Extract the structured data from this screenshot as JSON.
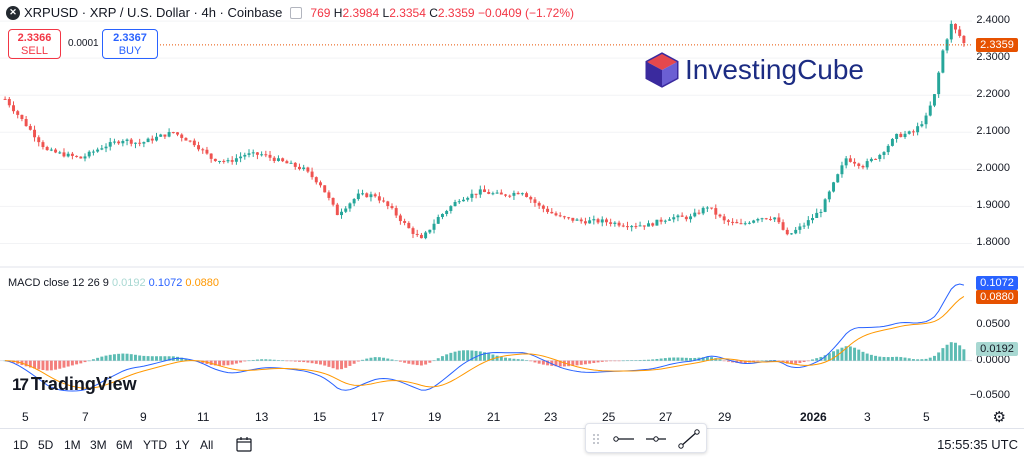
{
  "header": {
    "symbol_icon": "x-logo-icon",
    "title": "XRPUSD · XRP / U.S. Dollar · 4h · Coinbase",
    "open_label": "769",
    "high_label": "H",
    "high_value": "2.3984",
    "low_label": "L",
    "low_value": "2.3354",
    "close_label": "C",
    "close_value": "2.3359",
    "change": "−0.0409 (−1.72%)"
  },
  "trade": {
    "sell_price": "2.3366",
    "sell_label": "SELL",
    "spread": "0.0001",
    "buy_price": "2.3367",
    "buy_label": "BUY"
  },
  "price_axis": {
    "ticks": [
      "2.4000",
      "2.3000",
      "2.2000",
      "2.1000",
      "2.0000",
      "1.9000",
      "1.8000"
    ],
    "last_price_tag": "2.3359",
    "colors": {
      "up": "#26a69a",
      "down": "#ef5350",
      "tag": "#e65100"
    }
  },
  "macd": {
    "legend_name": "MACD close 12 26 9",
    "hist_value": "0.0192",
    "macd_value": "0.1072",
    "signal_value": "0.0880",
    "axis_ticks": [
      "0.0500",
      "0.0000",
      "−0.0500"
    ],
    "colors": {
      "macd": "#2962ff",
      "signal": "#ff9800",
      "hist_up": "#26a69a",
      "hist_down": "#ef5350"
    }
  },
  "x_axis": {
    "labels": [
      "5",
      "7",
      "9",
      "11",
      "13",
      "15",
      "17",
      "19",
      "21",
      "23",
      "25",
      "27",
      "29",
      "2026",
      "3",
      "5"
    ]
  },
  "watermark": {
    "text": "InvestingCube",
    "icon": "investingcube-cube-icon"
  },
  "branding": {
    "text": "TradingView",
    "icon": "tradingview-logo-icon"
  },
  "bottom_bar": {
    "ranges": [
      "1D",
      "5D",
      "1M",
      "3M",
      "6M",
      "YTD",
      "1Y",
      "All"
    ],
    "calendar_icon": "calendar-goto-icon",
    "time": "15:55:35 UTC"
  },
  "tools": [
    "drag-handle-icon",
    "horizontal-line-icon",
    "horizontal-ray-icon",
    "trend-line-icon"
  ],
  "chart_data": {
    "type": "candlestick",
    "interval": "4h",
    "x_labels": [
      "5",
      "7",
      "9",
      "11",
      "13",
      "15",
      "17",
      "19",
      "21",
      "23",
      "25",
      "27",
      "29",
      "2026",
      "3",
      "5"
    ],
    "y_range": [
      1.75,
      2.43
    ],
    "trend": [
      [
        0,
        2.19
      ],
      [
        5,
        2.12
      ],
      [
        10,
        2.05
      ],
      [
        18,
        2.03
      ],
      [
        23,
        2.06
      ],
      [
        28,
        2.08
      ],
      [
        32,
        2.07
      ],
      [
        37,
        2.09
      ],
      [
        40,
        2.1
      ],
      [
        45,
        2.07
      ],
      [
        49,
        2.03
      ],
      [
        53,
        2.02
      ],
      [
        57,
        2.04
      ],
      [
        61,
        2.04
      ],
      [
        66,
        2.02
      ],
      [
        71,
        2.0
      ],
      [
        75,
        1.96
      ],
      [
        79,
        1.88
      ],
      [
        84,
        1.93
      ],
      [
        88,
        1.93
      ],
      [
        92,
        1.89
      ],
      [
        96,
        1.84
      ],
      [
        99,
        1.81
      ],
      [
        103,
        1.87
      ],
      [
        108,
        1.92
      ],
      [
        113,
        1.94
      ],
      [
        118,
        1.93
      ],
      [
        123,
        1.94
      ],
      [
        127,
        1.9
      ],
      [
        132,
        1.87
      ],
      [
        137,
        1.86
      ],
      [
        142,
        1.86
      ],
      [
        148,
        1.85
      ],
      [
        153,
        1.85
      ],
      [
        158,
        1.87
      ],
      [
        163,
        1.87
      ],
      [
        167,
        1.9
      ],
      [
        171,
        1.86
      ],
      [
        175,
        1.85
      ],
      [
        179,
        1.87
      ],
      [
        183,
        1.87
      ],
      [
        186,
        1.82
      ],
      [
        190,
        1.85
      ],
      [
        194,
        1.89
      ],
      [
        197,
        1.96
      ],
      [
        200,
        2.03
      ],
      [
        204,
        2.01
      ],
      [
        208,
        2.04
      ],
      [
        212,
        2.09
      ],
      [
        216,
        2.1
      ],
      [
        219,
        2.14
      ],
      [
        221,
        2.2
      ],
      [
        223,
        2.32
      ],
      [
        225,
        2.39
      ],
      [
        227,
        2.36
      ],
      [
        228,
        2.34
      ]
    ],
    "last_close": 2.3359,
    "macd": {
      "macd": 0.1072,
      "signal": 0.088,
      "histogram": 0.0192,
      "y_range": [
        -0.06,
        0.13
      ]
    }
  }
}
